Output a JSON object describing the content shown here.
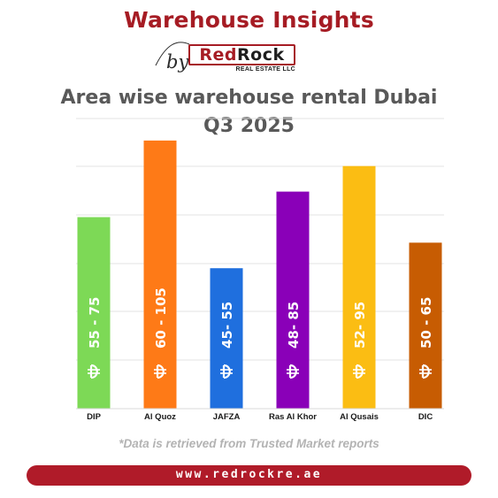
{
  "header": {
    "title": "Warehouse Insights",
    "by_text": "by",
    "logo": {
      "part1": "Red",
      "part2": "Rock",
      "subtitle": "REAL ESTATE LLC"
    }
  },
  "chart_data": {
    "type": "bar",
    "title_line1": "Area wise warehouse rental Dubai",
    "title_line2": "Q3 2025",
    "currency_symbol": "AED",
    "categories": [
      "DIP",
      "Al Quoz",
      "JAFZA",
      "Ras Al Khor",
      "Al Qusais",
      "DIC"
    ],
    "ranges": [
      [
        55,
        75
      ],
      [
        60,
        105
      ],
      [
        45,
        55
      ],
      [
        48,
        85
      ],
      [
        52,
        95
      ],
      [
        50,
        65
      ]
    ],
    "labels": [
      "55 - 75",
      "60 - 105",
      "45- 55",
      "48- 85",
      "52- 95",
      "50 - 65"
    ],
    "values": [
      75,
      105,
      55,
      85,
      95,
      65
    ],
    "colors": [
      "#7dd956",
      "#fe7a17",
      "#1f6fde",
      "#8a00b8",
      "#fbbd13",
      "#c75c02"
    ],
    "ylim": [
      0,
      115
    ],
    "grid": true,
    "legend": false
  },
  "footnote": "*Data is retrieved from Trusted Market reports",
  "footer": {
    "url": "www.redrockre.ae"
  }
}
